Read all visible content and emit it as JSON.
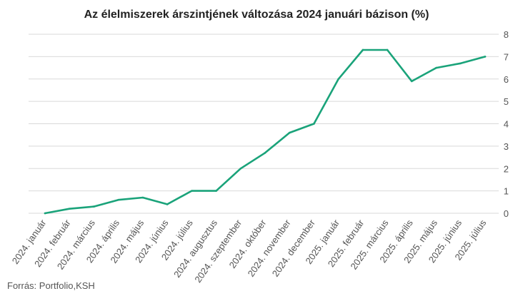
{
  "chart_data": {
    "type": "line",
    "title": "Az élelmiszerek árszintjének változása 2024 januári bázison (%)",
    "source": "Forrás: Portfolio,KSH",
    "categories": [
      "2024. január",
      "2024. február",
      "2024. március",
      "2024. április",
      "2024. május",
      "2024. június",
      "2024. július",
      "2024. augusztus",
      "2024. szeptember",
      "2024. október",
      "2024. november",
      "2024. december",
      "2025. január",
      "2025. február",
      "2025. március",
      "2025. április",
      "2025. május",
      "2025. június",
      "2025. július"
    ],
    "series": [
      {
        "values": [
          0,
          0.2,
          0.3,
          0.6,
          0.7,
          0.4,
          1.0,
          1.0,
          2.0,
          2.7,
          3.6,
          4.0,
          6.0,
          7.3,
          7.3,
          5.9,
          6.5,
          6.7,
          7.0
        ]
      }
    ],
    "ylim": [
      0,
      8
    ],
    "yticks": [
      0,
      1,
      2,
      3,
      4,
      5,
      6,
      7,
      8
    ],
    "y_axis_side": "right",
    "grid": true,
    "line_color": "#1aa37a",
    "grid_color": "#d9d9d9"
  }
}
